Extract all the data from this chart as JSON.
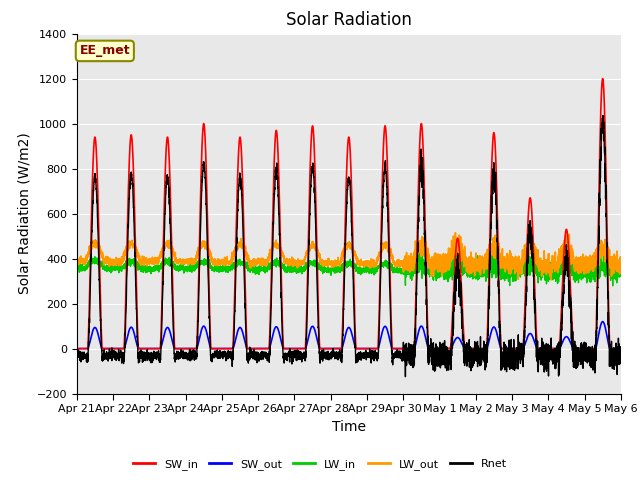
{
  "title": "Solar Radiation",
  "xlabel": "Time",
  "ylabel": "Solar Radiation (W/m2)",
  "ylim": [
    -200,
    1400
  ],
  "yticks": [
    -200,
    0,
    200,
    400,
    600,
    800,
    1000,
    1200,
    1400
  ],
  "x_labels": [
    "Apr 21",
    "Apr 22",
    "Apr 23",
    "Apr 24",
    "Apr 25",
    "Apr 26",
    "Apr 27",
    "Apr 28",
    "Apr 29",
    "Apr 30",
    "May 1",
    "May 2",
    "May 3",
    "May 4",
    "May 5",
    "May 6"
  ],
  "n_days": 15,
  "plot_bg": "#e8e8e8",
  "fig_bg": "#ffffff",
  "annotation_text": "EE_met",
  "annotation_bg": "#ffffcc",
  "annotation_border": "#888800",
  "legend_entries": [
    "SW_in",
    "SW_out",
    "LW_in",
    "LW_out",
    "Rnet"
  ],
  "legend_colors": [
    "#ff0000",
    "#0000ff",
    "#00cc00",
    "#ff9900",
    "#000000"
  ],
  "title_fontsize": 12,
  "axis_fontsize": 10,
  "tick_fontsize": 8
}
